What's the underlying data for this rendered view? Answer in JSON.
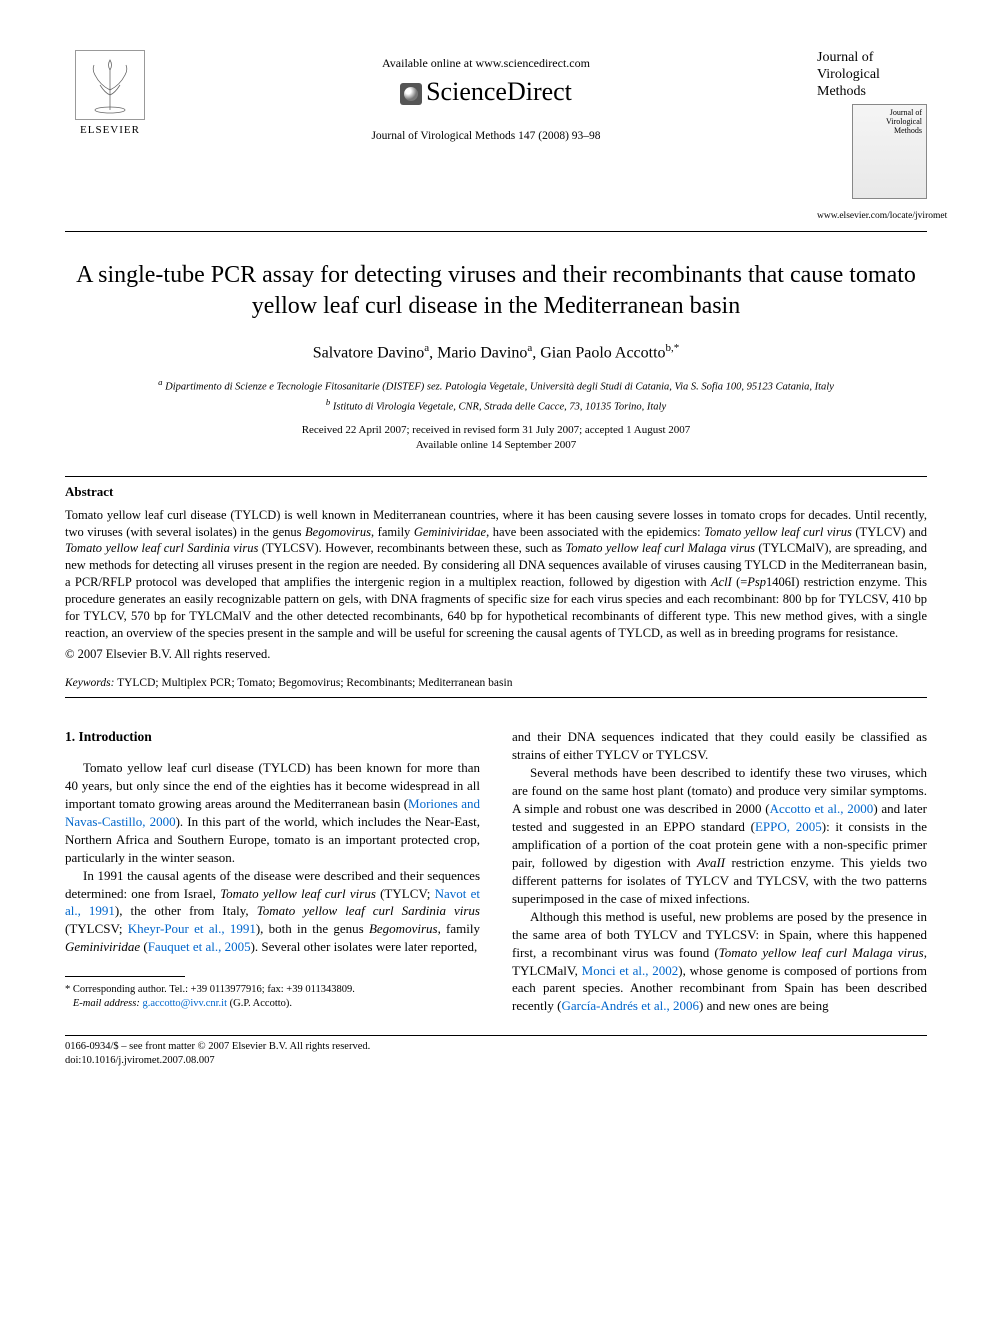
{
  "header": {
    "elsevier_label": "ELSEVIER",
    "available_online": "Available online at www.sciencedirect.com",
    "sciencedirect": "ScienceDirect",
    "journal_ref": "Journal of Virological Methods 147 (2008) 93–98",
    "journal_name_lines": [
      "Journal of",
      "Virological",
      "Methods"
    ],
    "journal_url": "www.elsevier.com/locate/jviromet"
  },
  "title": "A single-tube PCR assay for detecting viruses and their recombinants that cause tomato yellow leaf curl disease in the Mediterranean basin",
  "authors_html": "Salvatore Davino<sup>a</sup>, Mario Davino<sup>a</sup>, Gian Paolo Accotto<sup>b,*</sup>",
  "affiliations": {
    "a": "Dipartimento di Scienze e Tecnologie Fitosanitarie (DISTEF) sez. Patologia Vegetale, Università degli Studi di Catania, Via S. Sofia 100, 95123 Catania, Italy",
    "b": "Istituto di Virologia Vegetale, CNR, Strada delle Cacce, 73, 10135 Torino, Italy"
  },
  "dates": {
    "received": "Received 22 April 2007; received in revised form 31 July 2007; accepted 1 August 2007",
    "online": "Available online 14 September 2007"
  },
  "abstract": {
    "heading": "Abstract",
    "text": "Tomato yellow leaf curl disease (TYLCD) is well known in Mediterranean countries, where it has been causing severe losses in tomato crops for decades. Until recently, two viruses (with several isolates) in the genus Begomovirus, family Geminiviridae, have been associated with the epidemics: Tomato yellow leaf curl virus (TYLCV) and Tomato yellow leaf curl Sardinia virus (TYLCSV). However, recombinants between these, such as Tomato yellow leaf curl Malaga virus (TYLCMalV), are spreading, and new methods for detecting all viruses present in the region are needed. By considering all DNA sequences available of viruses causing TYLCD in the Mediterranean basin, a PCR/RFLP protocol was developed that amplifies the intergenic region in a multiplex reaction, followed by digestion with AclI (=Psp1406I) restriction enzyme. This procedure generates an easily recognizable pattern on gels, with DNA fragments of specific size for each virus species and each recombinant: 800 bp for TYLCSV, 410 bp for TYLCV, 570 bp for TYLCMalV and the other detected recombinants, 640 bp for hypothetical recombinants of different type. This new method gives, with a single reaction, an overview of the species present in the sample and will be useful for screening the causal agents of TYLCD, as well as in breeding programs for resistance.",
    "copyright": "© 2007 Elsevier B.V. All rights reserved."
  },
  "keywords": {
    "label": "Keywords:",
    "text": "TYLCD; Multiplex PCR; Tomato; Begomovirus; Recombinants; Mediterranean basin"
  },
  "introduction": {
    "heading": "1. Introduction",
    "left_paragraphs": [
      "Tomato yellow leaf curl disease (TYLCD) has been known for more than 40 years, but only since the end of the eighties has it become widespread in all important tomato growing areas around the Mediterranean basin (Moriones and Navas-Castillo, 2000). In this part of the world, which includes the Near-East, Northern Africa and Southern Europe, tomato is an important protected crop, particularly in the winter season.",
      "In 1991 the causal agents of the disease were described and their sequences determined: one from Israel, Tomato yellow leaf curl virus (TYLCV; Navot et al., 1991), the other from Italy, Tomato yellow leaf curl Sardinia virus (TYLCSV; Kheyr-Pour et al., 1991), both in the genus Begomovirus, family Geminiviridae (Fauquet et al., 2005). Several other isolates were later reported,"
    ],
    "right_paragraphs": [
      "and their DNA sequences indicated that they could easily be classified as strains of either TYLCV or TYLCSV.",
      "Several methods have been described to identify these two viruses, which are found on the same host plant (tomato) and produce very similar symptoms. A simple and robust one was described in 2000 (Accotto et al., 2000) and later tested and suggested in an EPPO standard (EPPO, 2005): it consists in the amplification of a portion of the coat protein gene with a non-specific primer pair, followed by digestion with AvaII restriction enzyme. This yields two different patterns for isolates of TYLCV and TYLCSV, with the two patterns superimposed in the case of mixed infections.",
      "Although this method is useful, new problems are posed by the presence in the same area of both TYLCV and TYLCSV: in Spain, where this happened first, a recombinant virus was found (Tomato yellow leaf curl Malaga virus, TYLCMalV, Monci et al., 2002), whose genome is composed of portions from each parent species. Another recombinant from Spain has been described recently (García-Andrés et al., 2006) and new ones are being"
    ]
  },
  "footnote": {
    "corresponding": "* Corresponding author. Tel.: +39 0113977916; fax: +39 011343809.",
    "email_label": "E-mail address:",
    "email": "g.accotto@ivv.cnr.it",
    "email_attribution": "(G.P. Accotto)."
  },
  "footer": {
    "line1": "0166-0934/$ – see front matter © 2007 Elsevier B.V. All rights reserved.",
    "line2": "doi:10.1016/j.jviromet.2007.08.007"
  },
  "refs": {
    "moriones": "Moriones and Navas-Castillo, 2000",
    "navot": "Navot et al., 1991",
    "kheyr": "Kheyr-Pour et al., 1991",
    "fauquet": "Fauquet et al., 2005",
    "accotto": "Accotto et al., 2000",
    "eppo": "EPPO, 2005",
    "monci": "Monci et al., 2002",
    "garcia": "García-Andrés et al., 2006"
  },
  "colors": {
    "link": "#0066cc",
    "text": "#000000",
    "background": "#ffffff"
  }
}
